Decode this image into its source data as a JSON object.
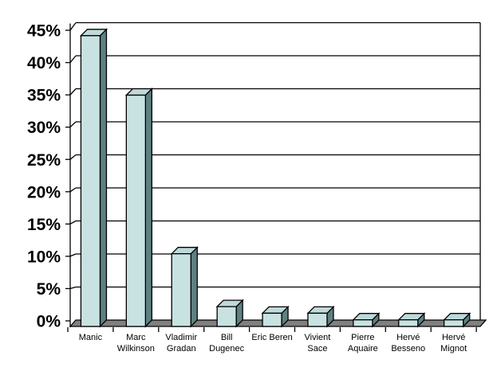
{
  "figure": {
    "background": "#FFFFFF"
  },
  "chart_data": {
    "type": "bar",
    "title": "",
    "xlabel": "",
    "ylabel": "",
    "categories": [
      "Manic",
      "Marc Wilkinson",
      "Vladimir Gradan",
      "Bill Dugenec",
      "Eric Beren",
      "Vivient Sace",
      "Pierre Aquaire",
      "Hervé Besseno",
      "Hervé Mignot"
    ],
    "category_lines": [
      [
        "Manic"
      ],
      [
        "Marc",
        "Wilkinson"
      ],
      [
        "Vladimir",
        "Gradan"
      ],
      [
        "Bill",
        "Dugenec"
      ],
      [
        "Eric Beren"
      ],
      [
        "Vivient",
        "Sace"
      ],
      [
        "Pierre",
        "Aquaire"
      ],
      [
        "Hervé",
        "Besseno"
      ],
      [
        "Hervé",
        "Mignot"
      ]
    ],
    "values": [
      44,
      35,
      11,
      3,
      2,
      2,
      1,
      1,
      1
    ],
    "unit": "%",
    "ylim": [
      0,
      45
    ],
    "ytick_step": 5,
    "ytick_labels": [
      "0%",
      "5%",
      "10%",
      "15%",
      "20%",
      "25%",
      "30%",
      "35%",
      "40%",
      "45%"
    ],
    "grid": true,
    "legend": false,
    "style": "2d-bars-with-3d-depth-effect",
    "colors": {
      "bar_front": "#C8E2E2",
      "bar_top": "#BFD9D9",
      "bar_side": "#5E8081",
      "floor": "#808080",
      "outline": "#000000",
      "text": "#000000",
      "background": "#FFFFFF"
    }
  }
}
